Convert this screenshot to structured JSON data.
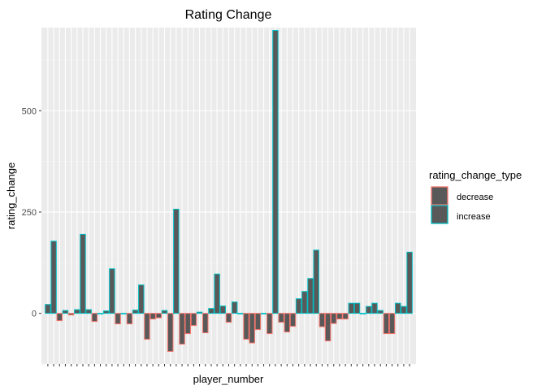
{
  "chart_data": {
    "type": "bar",
    "title": "Rating Change",
    "xlabel": "player_number",
    "ylabel": "rating_change",
    "ylim": [
      -125,
      705
    ],
    "yticks": [
      0,
      250,
      500
    ],
    "grid": true,
    "legend_position": "right",
    "legend_title": "rating_change_type",
    "legend": [
      {
        "name": "decrease",
        "outline": "#F8766D"
      },
      {
        "name": "increase",
        "outline": "#00BFC4"
      }
    ],
    "bar_fill": "#595959",
    "values": [
      22,
      178,
      -18,
      7,
      -4,
      9,
      195,
      9,
      -20,
      0,
      6,
      110,
      -26,
      0,
      -26,
      8,
      70,
      -64,
      -14,
      -11,
      7,
      -94,
      257,
      -76,
      -50,
      -30,
      3,
      -48,
      12,
      97,
      18,
      -22,
      28,
      0,
      -64,
      -73,
      -40,
      0,
      -50,
      698,
      -22,
      -46,
      -32,
      36,
      54,
      86,
      156,
      -33,
      -68,
      -25,
      -14,
      -14,
      25,
      25,
      0,
      17,
      25,
      7,
      -50,
      -50,
      25,
      17,
      151
    ]
  }
}
